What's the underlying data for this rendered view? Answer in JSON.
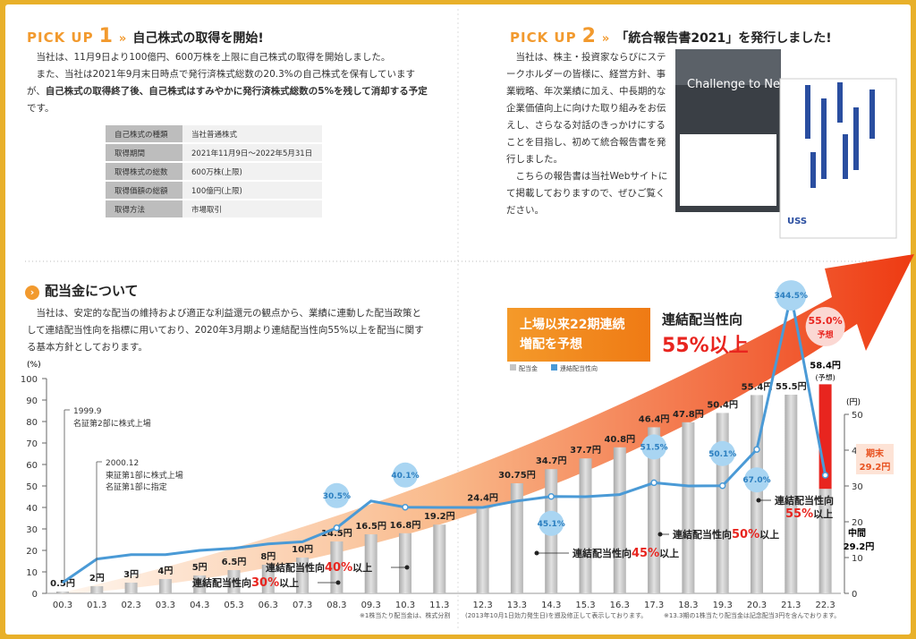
{
  "pickup1": {
    "label": "PICK UP",
    "number": "1",
    "title": "自己株式の取得を開始!",
    "paragraph1": "当社は、11月9日より100億円、600万株を上限に自己株式の取得を開始しました。",
    "paragraph2": {
      "before": "また、当社は2021年9月末日時点で発行済株式総数の20.3%の自己株式を保有していますが、",
      "bold": "自己株式の取得終了後、自己株式はすみやかに発行済株式総数の5%を残して消却する予定",
      "after": "です。"
    },
    "table": {
      "rows": [
        [
          "自己株式の種類",
          "当社普通株式"
        ],
        [
          "取得期間",
          "2021年11月9日～2022年5月31日"
        ],
        [
          "取得株式の総数",
          "600万株(上限)"
        ],
        [
          "取得価額の総額",
          "100億円(上限)"
        ],
        [
          "取得方法",
          "市場取引"
        ]
      ]
    }
  },
  "pickup2": {
    "label": "PICK UP",
    "number": "2",
    "title": "「統合報告書2021」を発行しました!",
    "paragraph1": "当社は、株主・投資家ならびにステークホルダーの皆様に、経営方針、事業戦略、年次業績に加え、中長期的な企業価値向上に向けた取り組みをお伝えし、さらなる対話のきっかけにすることを目指し、初めて統合報告書を発行しました。",
    "paragraph2": "こちらの報告書は当社Webサイトにて掲載しておりますので、ぜひご覧ください。",
    "cover": {
      "title": "Challenge to Next Stage",
      "brand": "USS"
    }
  },
  "dividend_section": {
    "title": "配当金について",
    "paragraph": "当社は、安定的な配当の維持および適正な利益還元の観点から、業績に連動した配当政策として連結配当性向を指標に用いており、2020年3月期より連結配当性向55%以上を配当に関する基本方針としております。",
    "badge": {
      "lines": [
        "上場以来22期連続",
        "増配を予想"
      ]
    },
    "policy": {
      "label": "連結配当性向",
      "value": "55%以上"
    }
  },
  "chart_data": {
    "type": "bar_line",
    "categories": [
      "00.3",
      "01.3",
      "02.3",
      "03.3",
      "04.3",
      "05.3",
      "06.3",
      "07.3",
      "08.3",
      "09.3",
      "10.3",
      "11.3",
      "12.3",
      "13.3",
      "14.3",
      "15.3",
      "16.3",
      "17.3",
      "18.3",
      "19.3",
      "20.3",
      "21.3",
      "22.3"
    ],
    "series": [
      {
        "name": "配当金",
        "color": "#c4c4c4",
        "axis": "y2",
        "values": [
          0.5,
          2,
          3,
          4,
          5,
          6.5,
          8,
          10,
          14.5,
          16.5,
          16.8,
          19.2,
          24.4,
          30.75,
          34.7,
          37.7,
          40.8,
          46.4,
          47.8,
          50.4,
          55.4,
          55.5,
          58.4
        ],
        "value_labels": [
          "0.5円",
          "2円",
          "3円",
          "4円",
          "5円",
          "6.5円",
          "8円",
          "10円",
          "14.5円",
          "16.5円",
          "16.8円",
          "19.2円",
          "24.4円",
          "30.75円",
          "34.7円",
          "37.7円",
          "40.8円",
          "46.4円",
          "47.8円",
          "50.4円",
          "55.4円",
          "55.5円",
          "58.4円"
        ]
      },
      {
        "name": "連結配当性向",
        "color": "#4a9ad6",
        "values": [
          5,
          16,
          18,
          18,
          20,
          21,
          23,
          24,
          30.5,
          43,
          40.1,
          40,
          40,
          43,
          45.1,
          45,
          46,
          51.5,
          50,
          50.1,
          67.0,
          344.5,
          55.0
        ],
        "value_labels": [
          null,
          null,
          null,
          null,
          null,
          null,
          null,
          null,
          "30.5%",
          null,
          "40.1%",
          null,
          null,
          null,
          "45.1%",
          null,
          null,
          "51.5%",
          null,
          "50.1%",
          "67.0%",
          "344.5%",
          "55.0%"
        ]
      }
    ],
    "ylim": [
      0,
      100
    ],
    "yticks": [
      0,
      10,
      20,
      30,
      40,
      50,
      60,
      70,
      80,
      90,
      100
    ],
    "y_label": "(%)",
    "y2lim": [
      0,
      60
    ],
    "y2ticks": [
      0,
      10,
      20,
      30,
      40,
      50
    ],
    "y2_label": "(円)",
    "grid": false,
    "forecast": {
      "dividend_note": "(予想)",
      "payout_note": "予想",
      "interim_label": "中間",
      "interim": 29.2,
      "interim_value_label": "29.2円",
      "year_end_label": "期末",
      "year_end": 29.2,
      "year_end_value_label": "29.2円",
      "year_end_color": "#e8251f"
    },
    "events": [
      {
        "date": "1999.9",
        "lines": [
          "名証第2部に株式上場"
        ]
      },
      {
        "date": "2000.12",
        "lines": [
          "東証第1部に株式上場",
          "名証第1部に指定"
        ]
      }
    ],
    "policy_annotations": [
      {
        "prefix": "連結配当性向",
        "highlight": "30%",
        "suffix": "以上"
      },
      {
        "prefix": "連結配当性向",
        "highlight": "40%",
        "suffix": "以上"
      },
      {
        "prefix": "連結配当性向",
        "highlight": "45%",
        "suffix": "以上"
      },
      {
        "prefix": "連結配当性向",
        "highlight": "50%",
        "suffix": "以上"
      },
      {
        "prefix": "連結配当性向",
        "highlight": "55%",
        "suffix": "以上"
      }
    ],
    "footnotes": [
      "※1株当たり配当金は、株式分割",
      "(2013年10月1日効力発生日)を遡及修正して表示しております。",
      "※13.3期の1株当たり配当金は記念配当3円を含んでおります。"
    ]
  }
}
